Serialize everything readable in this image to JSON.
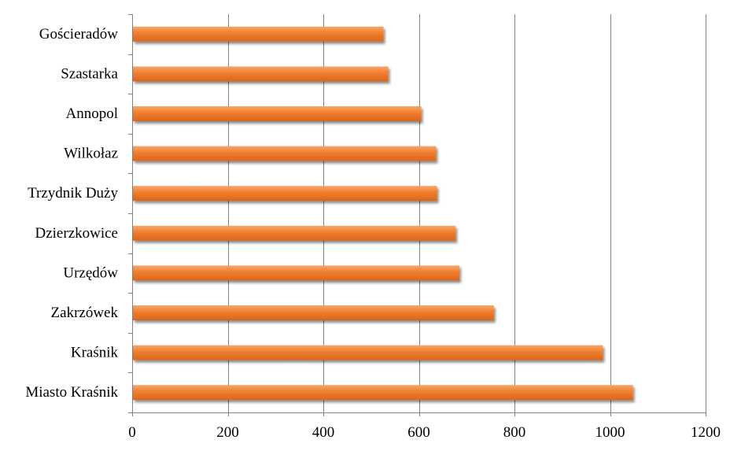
{
  "chart_data": {
    "type": "bar",
    "orientation": "horizontal",
    "title": "",
    "xlabel": "",
    "ylabel": "",
    "categories": [
      "Gościeradów",
      "Szastarka",
      "Annopol",
      "Wilkołaz",
      "Trzydnik Duży",
      "Dzierzkowice",
      "Urzędów",
      "Zakrzówek",
      "Kraśnik",
      "Miasto Kraśnik"
    ],
    "values": [
      526,
      536,
      605,
      636,
      638,
      677,
      685,
      757,
      985,
      1048
    ],
    "xlim": [
      0,
      1200
    ],
    "xticks": [
      0,
      200,
      400,
      600,
      800,
      1000,
      1200
    ],
    "xtick_labels": [
      "0",
      "200",
      "400",
      "600",
      "800",
      "1000",
      "1200"
    ],
    "grid": "vertical",
    "legend": "none",
    "colors": {
      "bar": "#f07d2e",
      "bar_light": "#f6a66a",
      "bar_dark": "#d9661c",
      "grid": "#808080",
      "axis": "#808080",
      "shadow": "#9a9a9a"
    }
  }
}
